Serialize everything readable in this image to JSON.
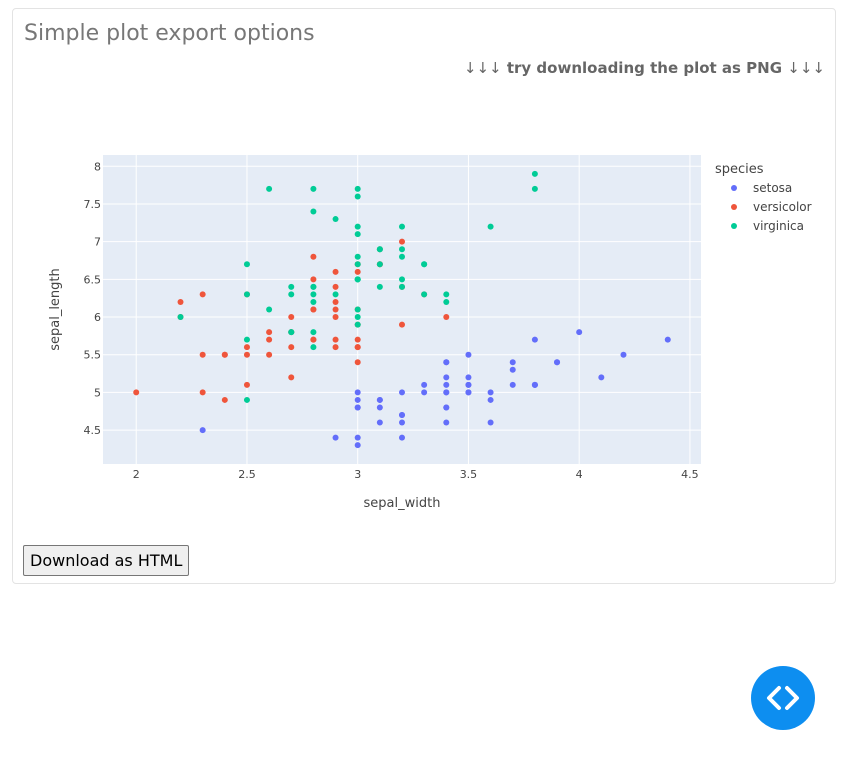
{
  "app": {
    "title": "Simple plot export options",
    "hint_arrows_left": "↓↓↓",
    "hint_text": "try downloading the plot as PNG",
    "hint_arrows_right": "↓↓↓",
    "download_button": "Download as HTML",
    "code_button_icon": "code-icon"
  },
  "chart_data": {
    "type": "scatter",
    "xlabel": "sepal_width",
    "ylabel": "sepal_length",
    "xlim": [
      1.85,
      4.55
    ],
    "ylim": [
      4.05,
      8.15
    ],
    "x_ticks": [
      2,
      2.5,
      3,
      3.5,
      4,
      4.5
    ],
    "x_tick_labels": [
      "2",
      "2.5",
      "3",
      "3.5",
      "4",
      "4.5"
    ],
    "y_ticks": [
      4.5,
      5,
      5.5,
      6,
      6.5,
      7,
      7.5,
      8
    ],
    "y_tick_labels": [
      "4.5",
      "5",
      "5.5",
      "6",
      "6.5",
      "7",
      "7.5",
      "8"
    ],
    "grid": true,
    "legend_title": "species",
    "legend_position": "right",
    "series": [
      {
        "name": "setosa",
        "color": "#636efa",
        "points": [
          [
            3.5,
            5.1
          ],
          [
            3.0,
            4.9
          ],
          [
            3.2,
            4.7
          ],
          [
            3.1,
            4.6
          ],
          [
            3.6,
            5.0
          ],
          [
            3.9,
            5.4
          ],
          [
            3.4,
            4.6
          ],
          [
            3.4,
            5.0
          ],
          [
            2.9,
            4.4
          ],
          [
            3.1,
            4.9
          ],
          [
            3.7,
            5.4
          ],
          [
            3.4,
            4.8
          ],
          [
            3.0,
            4.8
          ],
          [
            3.0,
            4.3
          ],
          [
            4.0,
            5.8
          ],
          [
            4.4,
            5.7
          ],
          [
            3.9,
            5.4
          ],
          [
            3.5,
            5.1
          ],
          [
            3.8,
            5.7
          ],
          [
            3.8,
            5.1
          ],
          [
            3.4,
            5.4
          ],
          [
            3.7,
            5.1
          ],
          [
            3.6,
            4.6
          ],
          [
            3.3,
            5.1
          ],
          [
            3.4,
            4.8
          ],
          [
            3.0,
            5.0
          ],
          [
            3.4,
            5.0
          ],
          [
            3.5,
            5.2
          ],
          [
            3.4,
            5.2
          ],
          [
            3.2,
            4.7
          ],
          [
            3.1,
            4.8
          ],
          [
            3.4,
            5.4
          ],
          [
            4.1,
            5.2
          ],
          [
            4.2,
            5.5
          ],
          [
            3.1,
            4.9
          ],
          [
            3.2,
            5.0
          ],
          [
            3.5,
            5.5
          ],
          [
            3.6,
            4.9
          ],
          [
            3.0,
            4.4
          ],
          [
            3.4,
            5.1
          ],
          [
            3.5,
            5.0
          ],
          [
            2.3,
            4.5
          ],
          [
            3.2,
            4.4
          ],
          [
            3.5,
            5.0
          ],
          [
            3.8,
            5.1
          ],
          [
            3.0,
            4.8
          ],
          [
            3.8,
            5.1
          ],
          [
            3.2,
            4.6
          ],
          [
            3.7,
            5.3
          ],
          [
            3.3,
            5.0
          ]
        ]
      },
      {
        "name": "versicolor",
        "color": "#ef553b",
        "points": [
          [
            3.2,
            7.0
          ],
          [
            3.2,
            6.4
          ],
          [
            3.1,
            6.9
          ],
          [
            2.3,
            5.5
          ],
          [
            2.8,
            6.5
          ],
          [
            2.8,
            5.7
          ],
          [
            3.3,
            6.3
          ],
          [
            2.4,
            4.9
          ],
          [
            2.9,
            6.6
          ],
          [
            2.7,
            5.2
          ],
          [
            2.0,
            5.0
          ],
          [
            3.0,
            5.9
          ],
          [
            2.2,
            6.0
          ],
          [
            2.9,
            6.1
          ],
          [
            2.9,
            5.6
          ],
          [
            3.1,
            6.7
          ],
          [
            3.0,
            5.6
          ],
          [
            2.7,
            5.8
          ],
          [
            2.2,
            6.2
          ],
          [
            2.5,
            5.6
          ],
          [
            3.2,
            5.9
          ],
          [
            2.8,
            6.1
          ],
          [
            2.5,
            6.3
          ],
          [
            2.8,
            6.1
          ],
          [
            2.9,
            6.4
          ],
          [
            3.0,
            6.6
          ],
          [
            2.8,
            6.8
          ],
          [
            3.0,
            6.7
          ],
          [
            2.9,
            6.0
          ],
          [
            2.6,
            5.7
          ],
          [
            2.4,
            5.5
          ],
          [
            2.4,
            5.5
          ],
          [
            2.7,
            5.8
          ],
          [
            2.7,
            6.0
          ],
          [
            3.0,
            5.4
          ],
          [
            3.4,
            6.0
          ],
          [
            3.1,
            6.7
          ],
          [
            2.3,
            6.3
          ],
          [
            3.0,
            5.6
          ],
          [
            2.5,
            5.5
          ],
          [
            2.6,
            5.5
          ],
          [
            3.0,
            6.1
          ],
          [
            2.6,
            5.8
          ],
          [
            2.3,
            5.0
          ],
          [
            2.7,
            5.6
          ],
          [
            3.0,
            5.7
          ],
          [
            2.9,
            5.7
          ],
          [
            2.9,
            6.2
          ],
          [
            2.5,
            5.1
          ],
          [
            2.8,
            5.7
          ]
        ]
      },
      {
        "name": "virginica",
        "color": "#00cc96",
        "points": [
          [
            3.3,
            6.3
          ],
          [
            2.7,
            5.8
          ],
          [
            3.0,
            7.1
          ],
          [
            2.9,
            6.3
          ],
          [
            3.0,
            6.5
          ],
          [
            3.0,
            7.6
          ],
          [
            2.5,
            4.9
          ],
          [
            2.9,
            7.3
          ],
          [
            2.5,
            6.7
          ],
          [
            3.6,
            7.2
          ],
          [
            3.2,
            6.5
          ],
          [
            2.7,
            6.4
          ],
          [
            3.0,
            6.8
          ],
          [
            2.5,
            5.7
          ],
          [
            2.8,
            5.8
          ],
          [
            3.2,
            6.4
          ],
          [
            3.0,
            6.5
          ],
          [
            3.8,
            7.7
          ],
          [
            2.6,
            7.7
          ],
          [
            2.2,
            6.0
          ],
          [
            3.2,
            6.9
          ],
          [
            2.8,
            5.6
          ],
          [
            2.8,
            7.7
          ],
          [
            2.7,
            6.3
          ],
          [
            3.3,
            6.7
          ],
          [
            3.2,
            7.2
          ],
          [
            2.8,
            6.2
          ],
          [
            3.0,
            6.1
          ],
          [
            2.8,
            6.4
          ],
          [
            3.0,
            7.2
          ],
          [
            2.8,
            7.4
          ],
          [
            3.8,
            7.9
          ],
          [
            2.8,
            6.4
          ],
          [
            2.8,
            6.3
          ],
          [
            2.6,
            6.1
          ],
          [
            3.0,
            7.7
          ],
          [
            3.4,
            6.3
          ],
          [
            3.1,
            6.4
          ],
          [
            3.0,
            6.0
          ],
          [
            3.1,
            6.9
          ],
          [
            3.1,
            6.7
          ],
          [
            3.1,
            6.9
          ],
          [
            2.7,
            5.8
          ],
          [
            3.2,
            6.8
          ],
          [
            3.3,
            6.7
          ],
          [
            3.0,
            6.7
          ],
          [
            2.5,
            6.3
          ],
          [
            3.0,
            6.5
          ],
          [
            3.4,
            6.2
          ],
          [
            3.0,
            5.9
          ]
        ]
      }
    ]
  }
}
